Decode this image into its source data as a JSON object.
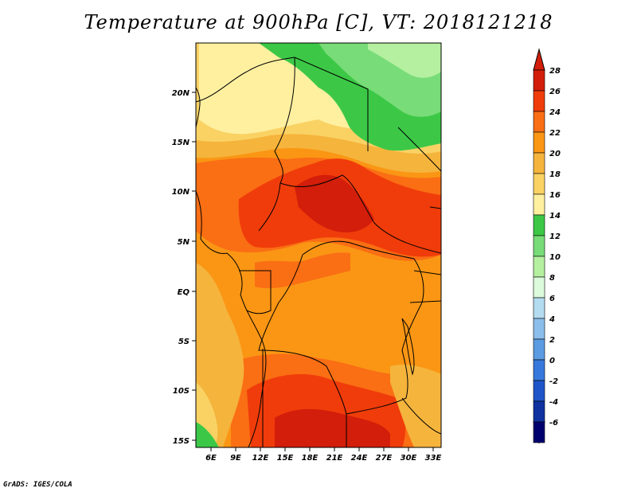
{
  "title": "Temperature at 900hPa [C], VT: 2018121218",
  "credit": "GrADS: IGES/COLA",
  "map": {
    "lat_labels": [
      "20N",
      "15N",
      "10N",
      "5N",
      "EQ",
      "5S",
      "10S",
      "15S"
    ],
    "lon_labels": [
      "6E",
      "9E",
      "12E",
      "15E",
      "18E",
      "21E",
      "24E",
      "27E",
      "30E",
      "33E"
    ]
  },
  "colorbar": {
    "labels": [
      "28",
      "26",
      "24",
      "22",
      "20",
      "18",
      "16",
      "14",
      "12",
      "10",
      "8",
      "6",
      "4",
      "2",
      "0",
      "-2",
      "-4",
      "-6"
    ],
    "colors": [
      "#d21e0a",
      "#f03c0a",
      "#fa6e14",
      "#fa9614",
      "#f5b43c",
      "#fad264",
      "#fff0a0",
      "#3cc846",
      "#78dc78",
      "#b4f0a0",
      "#dcfadc",
      "#b4dcf0",
      "#8cbeeb",
      "#5a9be1",
      "#3778dc",
      "#1e55c8",
      "#0f32a0",
      "#00006e"
    ],
    "top_arrow_color": "#d21e0a",
    "bottom_arrow_color": "#d2d2fa"
  },
  "field_colors": {
    "very_hot": "#d21e0a",
    "hot": "#f03c0a",
    "warm": "#fa6e14",
    "mild": "#fa9614",
    "moderate": "#f5b43c",
    "cool": "#fad264",
    "cooler": "#fff0a0",
    "green": "#3cc846",
    "lightgreen": "#78dc78",
    "palegreen": "#b4f0a0"
  }
}
